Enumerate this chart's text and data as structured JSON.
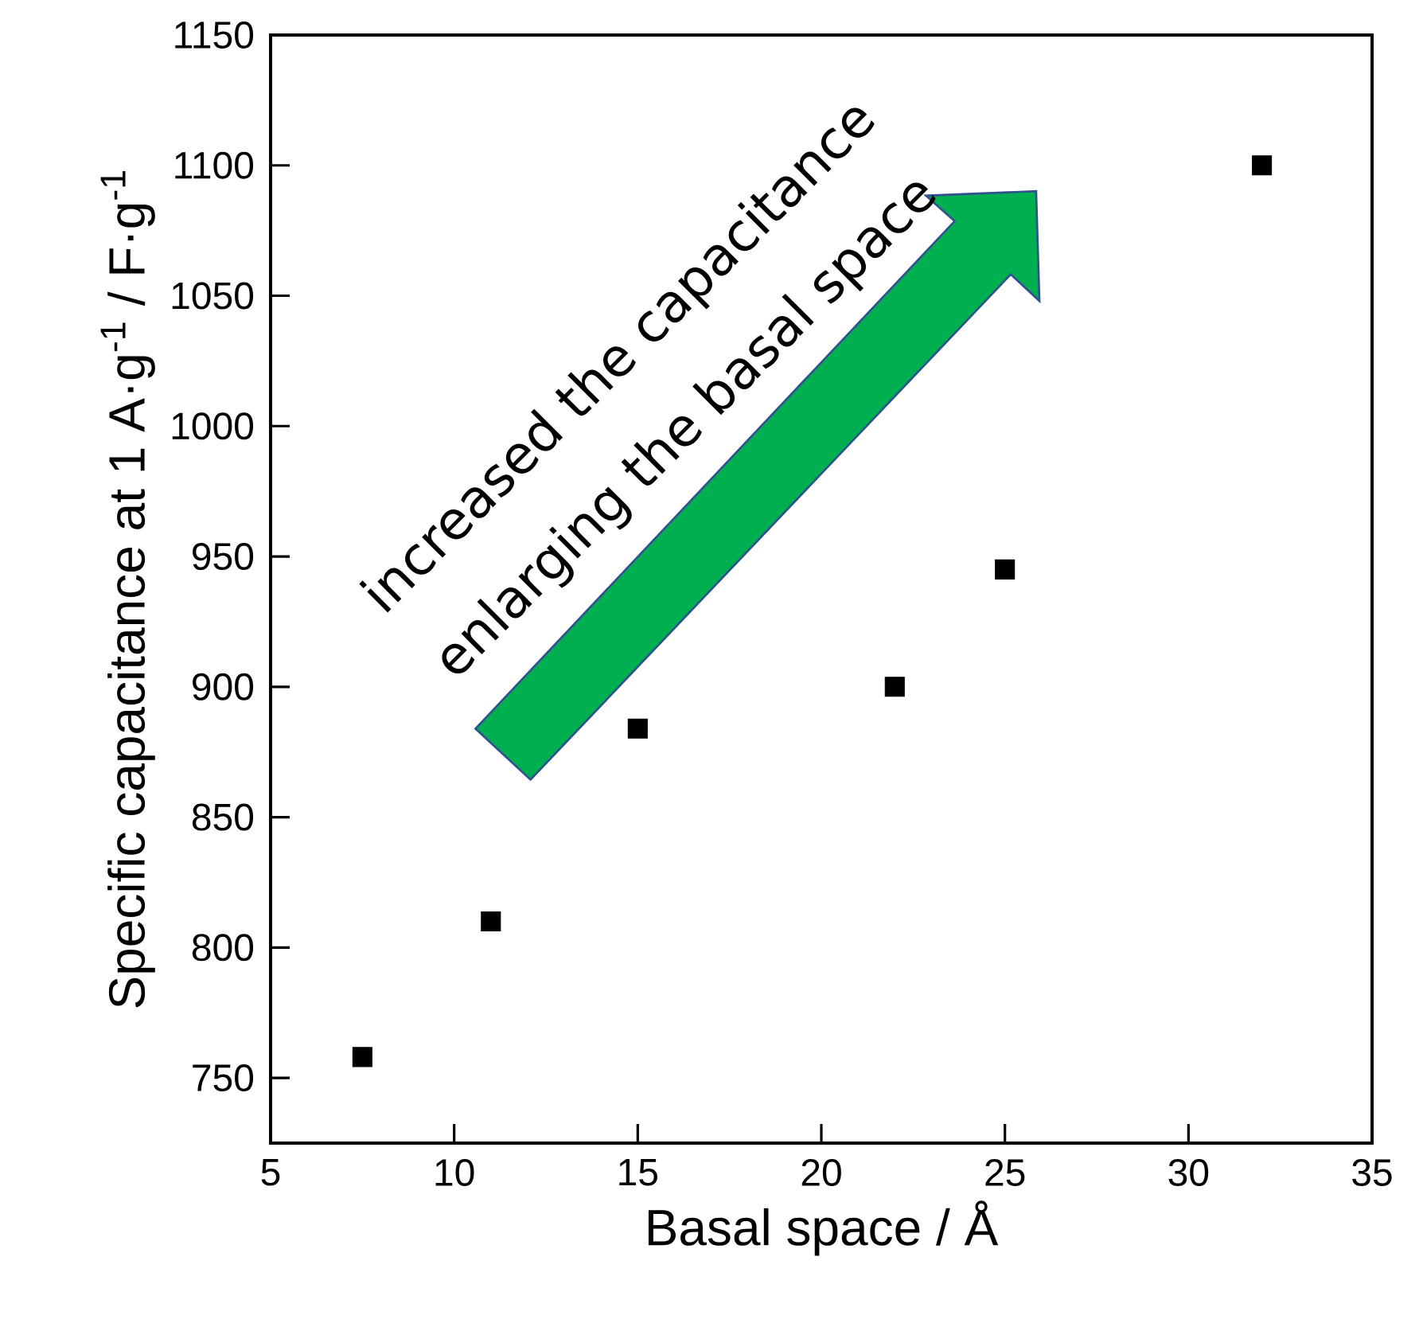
{
  "chart_data": {
    "type": "scatter",
    "xlabel": "Basal space / Å",
    "ylabel": "Specific capacitance at 1 A·g$^{-1}$ / F·g$^{-1}$",
    "x": [
      7.5,
      11,
      15,
      22,
      25,
      32
    ],
    "series": [
      {
        "color": "#000000",
        "values": [
          758,
          810,
          884,
          900,
          945,
          1100
        ]
      }
    ],
    "marker": "square",
    "xlim": [
      5,
      35
    ],
    "ylim": [
      725,
      1150
    ],
    "xticks": [
      5,
      10,
      15,
      20,
      25,
      30,
      35
    ],
    "yticks": [
      750,
      800,
      850,
      900,
      950,
      1000,
      1050,
      1100,
      1150
    ],
    "annotations": [
      "increased the capacitance",
      "enlarging the basal space"
    ]
  }
}
